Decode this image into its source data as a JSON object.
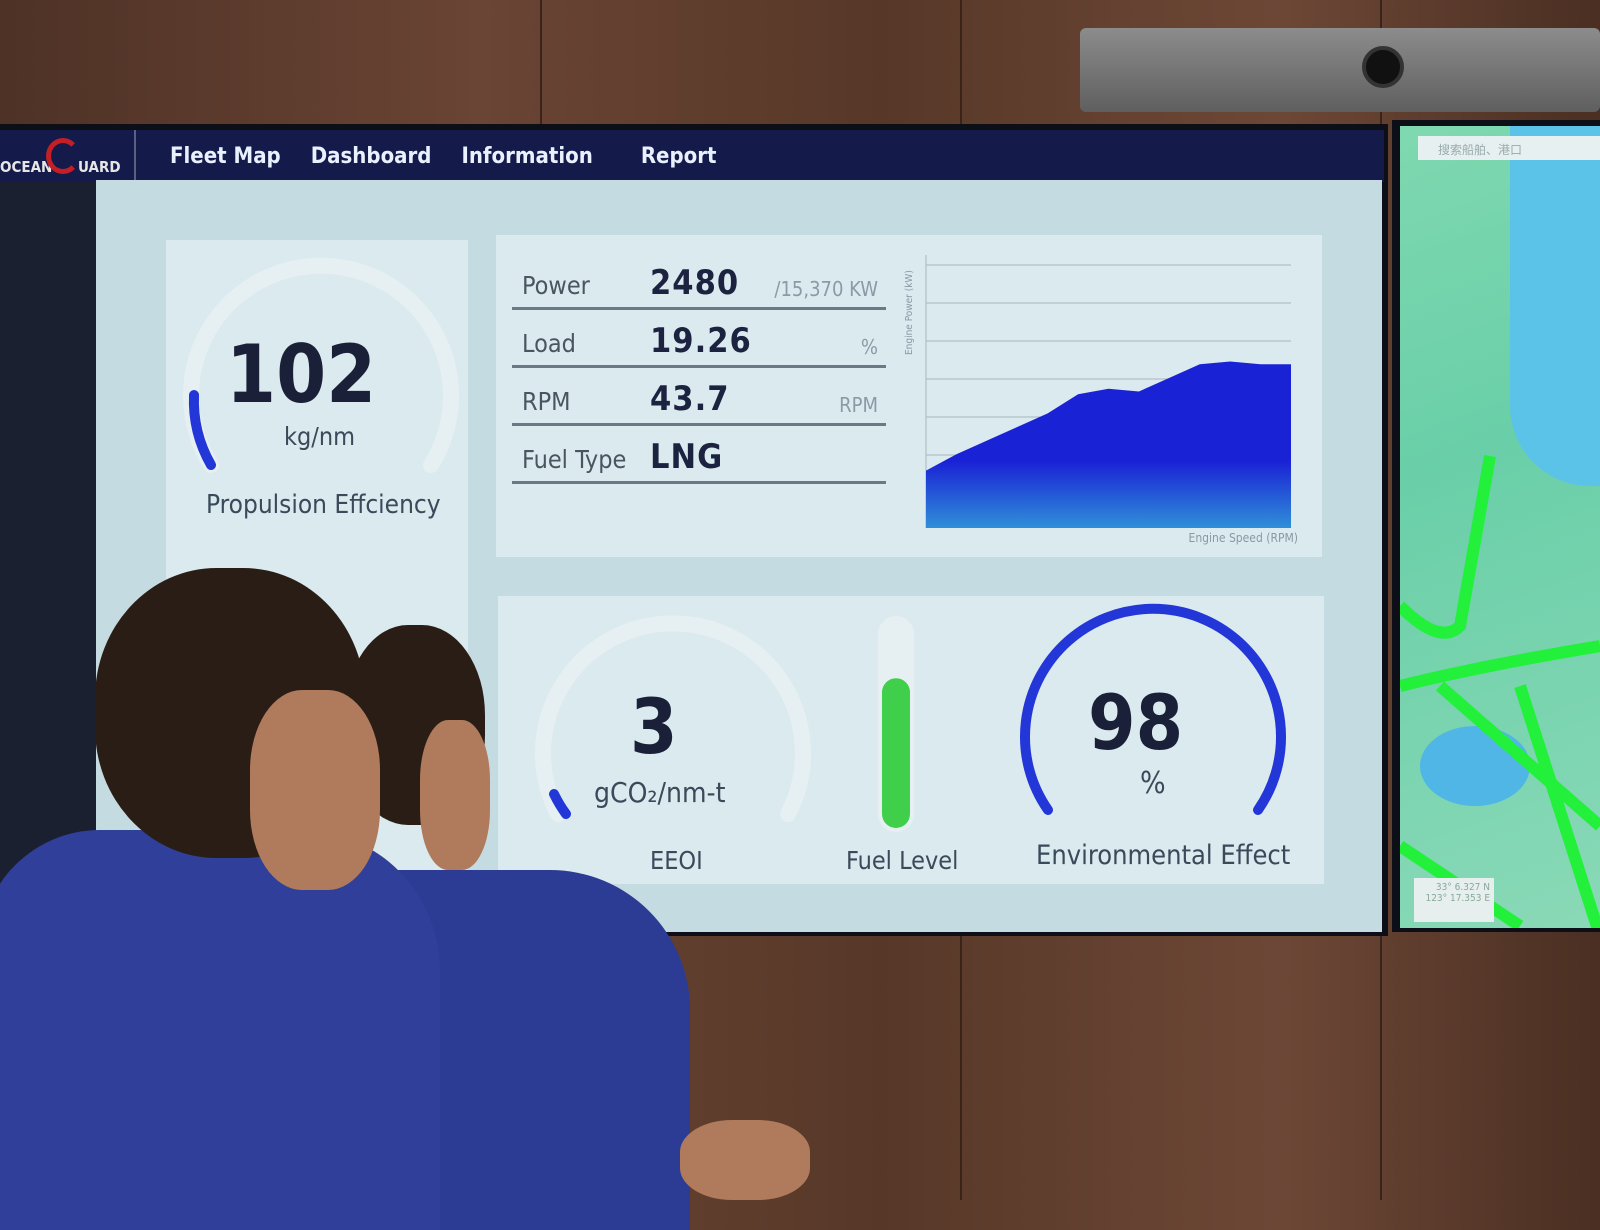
{
  "nav": {
    "logo": "OCEAN GUARD",
    "items": [
      "Fleet Map",
      "Dashboard",
      "Information",
      "Report"
    ]
  },
  "propulsion": {
    "value": "102",
    "unit": "kg/nm",
    "label": "Propulsion Effciency",
    "gauge_fraction": 0.12
  },
  "engine": {
    "rows": [
      {
        "label": "Power",
        "value": "2480",
        "unit": "/15,370 KW"
      },
      {
        "label": "Load",
        "value": "19.26",
        "unit": "%"
      },
      {
        "label": "RPM",
        "value": "43.7",
        "unit": "RPM"
      },
      {
        "label": "Fuel Type",
        "value": "LNG",
        "unit": ""
      }
    ]
  },
  "chart_data": {
    "type": "area",
    "xlabel": "Engine Speed (RPM)",
    "ylabel": "Engine Power (kW)",
    "grid": true,
    "values": [
      21,
      27,
      32,
      37,
      42,
      49,
      51,
      50,
      55,
      60,
      61,
      60,
      60
    ],
    "colors": {
      "top": "#1a22d6",
      "bottom": "#2f8fd8"
    }
  },
  "eeoi": {
    "value": "3",
    "unit": "gCO₂/nm-t",
    "label": "EEOI",
    "gauge_fraction": 0.06
  },
  "fuel": {
    "label": "Fuel Level",
    "fraction": 0.72,
    "color": "#3fcf4a"
  },
  "environment": {
    "value": "98",
    "unit": "%",
    "label": "Environmental Effect",
    "gauge_fraction": 0.98,
    "color": "#2336d8"
  },
  "map": {
    "search_placeholder": "搜索船舶、港口",
    "coords": [
      "33° 6.327 N",
      "123° 17.353 E"
    ]
  }
}
